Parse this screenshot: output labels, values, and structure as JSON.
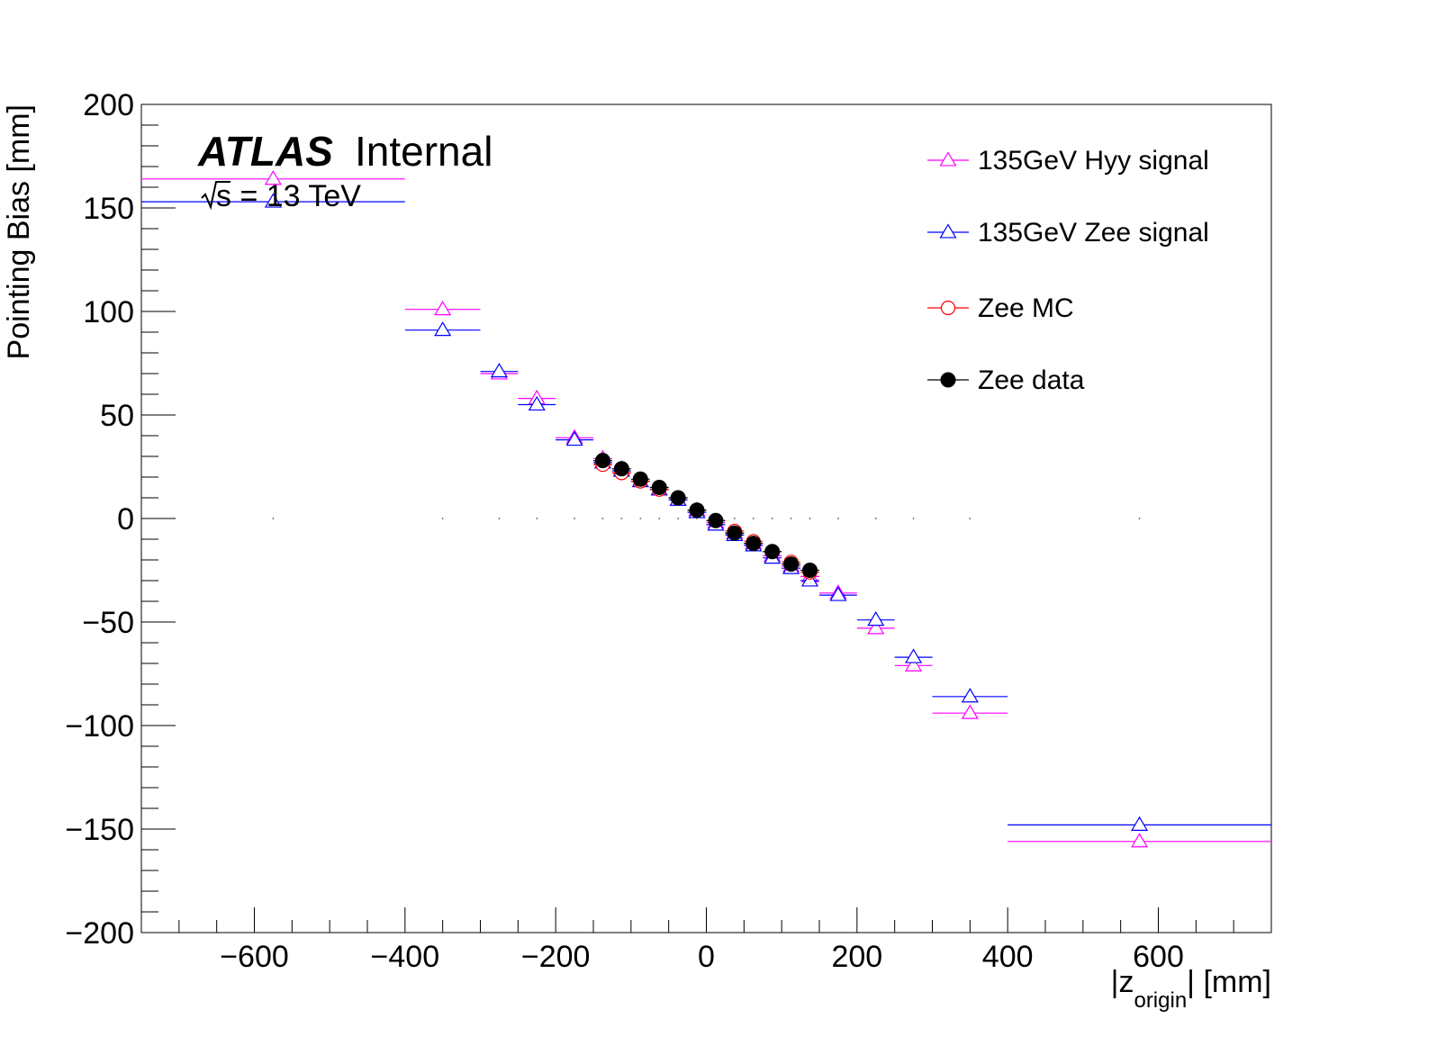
{
  "chart_data": {
    "type": "scatter",
    "xlabel_main": "|z",
    "xlabel_sub": "origin",
    "xlabel_tail": "| [mm]",
    "ylabel": "Pointing Bias [mm]",
    "xlim": [
      -750,
      750
    ],
    "ylim": [
      -200,
      200
    ],
    "x_ticks": [
      -600,
      -400,
      -200,
      0,
      200,
      400,
      600
    ],
    "x_tick_labels": [
      "−600",
      "−400",
      "−200",
      "0",
      "200",
      "400",
      "600"
    ],
    "y_ticks": [
      -200,
      -150,
      -100,
      -50,
      0,
      50,
      100,
      150,
      200
    ],
    "y_tick_labels": [
      "−200",
      "−150",
      "−100",
      "−50",
      "0",
      "50",
      "100",
      "150",
      "200"
    ],
    "atlas_label": "ATLAS",
    "atlas_sub": "Internal",
    "energy_label": "s = 13 TeV",
    "zero_dots_x": [
      -575,
      -350,
      -275,
      -225,
      -175,
      -137.5,
      -112.5,
      -87.5,
      -62.5,
      -37.5,
      -12.5,
      12.5,
      37.5,
      62.5,
      87.5,
      112.5,
      137.5,
      175,
      225,
      275,
      350,
      575
    ],
    "series": [
      {
        "name": "135GeV Hyy signal",
        "color": "#ff00ff",
        "marker": "triangle",
        "x": [
          -575,
          -350,
          -275,
          -225,
          -175,
          -137.5,
          -112.5,
          -87.5,
          -62.5,
          -37.5,
          -12.5,
          12.5,
          37.5,
          62.5,
          87.5,
          112.5,
          137.5,
          175,
          225,
          275,
          350,
          575
        ],
        "xerr": [
          175,
          50,
          25,
          25,
          25,
          12.5,
          12.5,
          12.5,
          12.5,
          12.5,
          12.5,
          12.5,
          12.5,
          12.5,
          12.5,
          12.5,
          12.5,
          25,
          25,
          25,
          50,
          175
        ],
        "y": [
          164,
          101,
          70,
          58,
          39,
          29,
          24,
          18,
          14,
          9,
          4,
          -2,
          -7,
          -12,
          -18,
          -23,
          -28,
          -36,
          -53,
          -71,
          -94,
          -156
        ]
      },
      {
        "name": "135GeV Zee signal",
        "color": "#0000ff",
        "marker": "triangle",
        "x": [
          -575,
          -350,
          -275,
          -225,
          -175,
          -137.5,
          -112.5,
          -87.5,
          -62.5,
          -37.5,
          -12.5,
          12.5,
          37.5,
          62.5,
          87.5,
          112.5,
          137.5,
          175,
          225,
          275,
          350,
          575
        ],
        "xerr": [
          175,
          50,
          25,
          25,
          25,
          12.5,
          12.5,
          12.5,
          12.5,
          12.5,
          12.5,
          12.5,
          12.5,
          12.5,
          12.5,
          12.5,
          12.5,
          25,
          25,
          25,
          50,
          175
        ],
        "y": [
          153,
          91,
          71,
          55,
          38,
          27,
          23,
          18,
          14,
          9,
          3,
          -3,
          -8,
          -13,
          -19,
          -24,
          -30,
          -37,
          -49,
          -67,
          -86,
          -148
        ]
      },
      {
        "name": "Zee MC",
        "color": "#ff0000",
        "marker": "open-circle",
        "x": [
          -137.5,
          -112.5,
          -87.5,
          -62.5,
          -37.5,
          -12.5,
          12.5,
          37.5,
          62.5,
          87.5,
          112.5,
          137.5
        ],
        "xerr": [
          12.5,
          12.5,
          12.5,
          12.5,
          12.5,
          12.5,
          12.5,
          12.5,
          12.5,
          12.5,
          12.5,
          12.5
        ],
        "y": [
          26,
          22,
          18,
          14,
          10,
          4,
          -1,
          -6,
          -11,
          -16,
          -21,
          -26
        ]
      },
      {
        "name": "Zee data",
        "color": "#000000",
        "marker": "filled-circle",
        "x": [
          -137.5,
          -112.5,
          -87.5,
          -62.5,
          -37.5,
          -12.5,
          12.5,
          37.5,
          62.5,
          87.5,
          112.5,
          137.5
        ],
        "xerr": [
          12.5,
          12.5,
          12.5,
          12.5,
          12.5,
          12.5,
          12.5,
          12.5,
          12.5,
          12.5,
          12.5,
          12.5
        ],
        "y": [
          28,
          24,
          19,
          15,
          10,
          4,
          -1,
          -7,
          -12,
          -16,
          -22,
          -25
        ]
      }
    ]
  }
}
